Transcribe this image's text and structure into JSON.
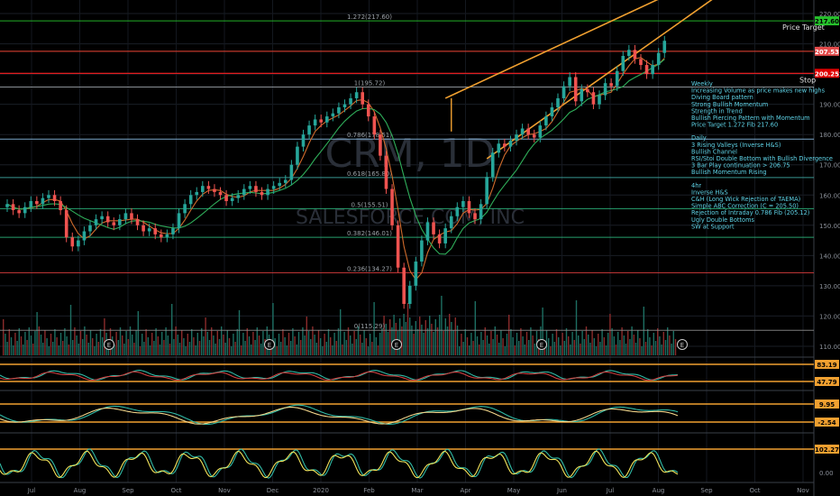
{
  "chart_data": {
    "type": "candlestick",
    "watermark_symbol": "CRM, 1D",
    "watermark_name": "SALESFORCE.COM, INC",
    "x_months": [
      "Jul",
      "Aug",
      "Sep",
      "Oct",
      "Nov",
      "Dec",
      "2020",
      "Feb",
      "Mar",
      "Apr",
      "May",
      "Jun",
      "Jul",
      "Aug",
      "Sep",
      "Oct",
      "Nov"
    ],
    "price_axis": {
      "ticks": [
        "220.00",
        "210.00",
        "200.00",
        "190.00",
        "180.00",
        "170.00",
        "160.00",
        "150.00",
        "140.00",
        "130.00",
        "120.00",
        "110.00"
      ],
      "ylim": [
        107,
        223
      ]
    },
    "fib_levels": [
      {
        "label": "1.272(217.60)",
        "value": 217.6,
        "color": "#26c12c"
      },
      {
        "label": "1(195.72)",
        "value": 195.72,
        "color": "#9aa0a6"
      },
      {
        "label": "0.786(178.51)",
        "value": 178.51,
        "color": "#87b8e0"
      },
      {
        "label": "0.618(165.80)",
        "value": 165.8,
        "color": "#3fa8a0"
      },
      {
        "label": "0.5(155.51)",
        "value": 155.51,
        "color": "#2db37a"
      },
      {
        "label": "0.382(146.01)",
        "value": 146.01,
        "color": "#2db37a"
      },
      {
        "label": "0.236(134.27)",
        "value": 134.27,
        "color": "#d13a3a"
      },
      {
        "label": "0(115.29)",
        "value": 115.29,
        "color": "#8a8a8a"
      }
    ],
    "price_badges": [
      {
        "text": "217.60",
        "value": 217.6,
        "bg": "#26c12c",
        "fg": "#000000"
      },
      {
        "text": "207.53",
        "value": 207.53,
        "bg": "#e34b4b",
        "fg": "#ffffff"
      },
      {
        "text": "200.25",
        "value": 200.25,
        "bg": "#e00000",
        "fg": "#ffffff"
      }
    ],
    "horizontal_lines": [
      {
        "value": 207.53,
        "color": "#c0392b"
      },
      {
        "value": 200.25,
        "color": "#ff2020"
      }
    ],
    "labels": {
      "price_target": "Price Target",
      "stop": "Stop"
    },
    "notes": [
      {
        "group": "Weekly",
        "lines": [
          "Weekly",
          "Increasing Volume as price makes new highs",
          "Diving Board pattern",
          "Strong Bullish Momentum",
          "Strength in Trend",
          "Bullish Piercing Pattern with Momentum",
          "Price Target 1.272 Fib 217.60"
        ]
      },
      {
        "group": "Daily",
        "lines": [
          "Daily",
          "3 Rising Valleys (Inverse H&S)",
          "Bullish Channel",
          "RSI/Stoi Double Bottom with Bullish Divergence",
          "3 Bar Play continuation > 206.75",
          "Bullish Momentum Rising"
        ]
      },
      {
        "group": "4hr",
        "lines": [
          "4hr",
          "Inverse H&S",
          "C&H (Long Wick Rejection of TAEMA)",
          "Simple ABC Correction (C = 205.50)",
          "Rejection of Intraday 0.786 Fib (205.12)",
          "Ugly Double Bottoms",
          "SW at Support"
        ]
      }
    ],
    "earnings_marker": "E",
    "candles": [
      {
        "d": 0,
        "c": 157
      },
      {
        "d": 3,
        "c": 155
      },
      {
        "d": 6,
        "c": 154
      },
      {
        "d": 9,
        "c": 156
      },
      {
        "d": 12,
        "c": 158
      },
      {
        "d": 15,
        "c": 157
      },
      {
        "d": 18,
        "c": 159
      },
      {
        "d": 21,
        "c": 160
      },
      {
        "d": 24,
        "c": 158
      },
      {
        "d": 27,
        "c": 155
      },
      {
        "d": 30,
        "c": 146
      },
      {
        "d": 33,
        "c": 143
      },
      {
        "d": 36,
        "c": 145
      },
      {
        "d": 39,
        "c": 148
      },
      {
        "d": 42,
        "c": 150
      },
      {
        "d": 45,
        "c": 152
      },
      {
        "d": 48,
        "c": 153
      },
      {
        "d": 51,
        "c": 151
      },
      {
        "d": 54,
        "c": 150
      },
      {
        "d": 57,
        "c": 152
      },
      {
        "d": 60,
        "c": 154
      },
      {
        "d": 63,
        "c": 152
      },
      {
        "d": 66,
        "c": 150
      },
      {
        "d": 69,
        "c": 148
      },
      {
        "d": 72,
        "c": 149
      },
      {
        "d": 75,
        "c": 147
      },
      {
        "d": 78,
        "c": 146
      },
      {
        "d": 81,
        "c": 147
      },
      {
        "d": 84,
        "c": 149
      },
      {
        "d": 87,
        "c": 154
      },
      {
        "d": 90,
        "c": 157
      },
      {
        "d": 93,
        "c": 160
      },
      {
        "d": 96,
        "c": 161
      },
      {
        "d": 99,
        "c": 163
      },
      {
        "d": 102,
        "c": 162
      },
      {
        "d": 105,
        "c": 161
      },
      {
        "d": 108,
        "c": 160
      },
      {
        "d": 111,
        "c": 158
      },
      {
        "d": 114,
        "c": 159
      },
      {
        "d": 117,
        "c": 160
      },
      {
        "d": 120,
        "c": 162
      },
      {
        "d": 123,
        "c": 163
      },
      {
        "d": 126,
        "c": 161
      },
      {
        "d": 129,
        "c": 160
      },
      {
        "d": 132,
        "c": 162
      },
      {
        "d": 135,
        "c": 163
      },
      {
        "d": 138,
        "c": 164
      },
      {
        "d": 141,
        "c": 165
      },
      {
        "d": 144,
        "c": 170
      },
      {
        "d": 147,
        "c": 176
      },
      {
        "d": 150,
        "c": 180
      },
      {
        "d": 153,
        "c": 183
      },
      {
        "d": 156,
        "c": 185
      },
      {
        "d": 159,
        "c": 184
      },
      {
        "d": 162,
        "c": 186
      },
      {
        "d": 165,
        "c": 187
      },
      {
        "d": 168,
        "c": 189
      },
      {
        "d": 171,
        "c": 190
      },
      {
        "d": 174,
        "c": 192
      },
      {
        "d": 177,
        "c": 194
      },
      {
        "d": 180,
        "c": 190
      },
      {
        "d": 183,
        "c": 186
      },
      {
        "d": 186,
        "c": 180
      },
      {
        "d": 189,
        "c": 173
      },
      {
        "d": 192,
        "c": 162
      },
      {
        "d": 195,
        "c": 150
      },
      {
        "d": 198,
        "c": 136
      },
      {
        "d": 201,
        "c": 124
      },
      {
        "d": 204,
        "c": 130
      },
      {
        "d": 207,
        "c": 138
      },
      {
        "d": 210,
        "c": 145
      },
      {
        "d": 213,
        "c": 151
      },
      {
        "d": 216,
        "c": 147
      },
      {
        "d": 219,
        "c": 144
      },
      {
        "d": 222,
        "c": 149
      },
      {
        "d": 225,
        "c": 153
      },
      {
        "d": 228,
        "c": 156
      },
      {
        "d": 231,
        "c": 158
      },
      {
        "d": 234,
        "c": 154
      },
      {
        "d": 237,
        "c": 152
      },
      {
        "d": 240,
        "c": 157
      },
      {
        "d": 243,
        "c": 166
      },
      {
        "d": 246,
        "c": 174
      },
      {
        "d": 249,
        "c": 177
      },
      {
        "d": 252,
        "c": 176
      },
      {
        "d": 255,
        "c": 178
      },
      {
        "d": 258,
        "c": 180
      },
      {
        "d": 261,
        "c": 182
      },
      {
        "d": 264,
        "c": 180
      },
      {
        "d": 267,
        "c": 179
      },
      {
        "d": 270,
        "c": 183
      },
      {
        "d": 273,
        "c": 186
      },
      {
        "d": 276,
        "c": 189
      },
      {
        "d": 279,
        "c": 192
      },
      {
        "d": 282,
        "c": 196
      },
      {
        "d": 285,
        "c": 199
      },
      {
        "d": 288,
        "c": 191
      },
      {
        "d": 291,
        "c": 195
      },
      {
        "d": 294,
        "c": 194
      },
      {
        "d": 297,
        "c": 190
      },
      {
        "d": 300,
        "c": 193
      },
      {
        "d": 303,
        "c": 197
      },
      {
        "d": 306,
        "c": 196
      },
      {
        "d": 309,
        "c": 201
      },
      {
        "d": 312,
        "c": 206
      },
      {
        "d": 315,
        "c": 208
      },
      {
        "d": 318,
        "c": 205
      },
      {
        "d": 321,
        "c": 203
      },
      {
        "d": 324,
        "c": 200
      },
      {
        "d": 327,
        "c": 203
      },
      {
        "d": 330,
        "c": 207
      },
      {
        "d": 333,
        "c": 211
      }
    ],
    "channel_lines": [
      {
        "color": "#f0a030",
        "points": [
          {
            "d": 222,
            "v": 192
          },
          {
            "d": 334,
            "v": 226
          }
        ]
      },
      {
        "color": "#f0a030",
        "points": [
          {
            "d": 243,
            "v": 172
          },
          {
            "d": 360,
            "v": 226
          }
        ]
      }
    ],
    "osc1": {
      "upper_badge": "83.19",
      "lower_badge": "47.79",
      "upper": 83.19,
      "lower": 47.79
    },
    "osc2": {
      "upper_badge": "9.95",
      "lower_badge": "-2.54",
      "upper": 9.95,
      "lower": -2.54
    },
    "osc3": {
      "upper_badge": "102.27",
      "bottom_tick": "0.00",
      "upper": 102.27
    }
  }
}
